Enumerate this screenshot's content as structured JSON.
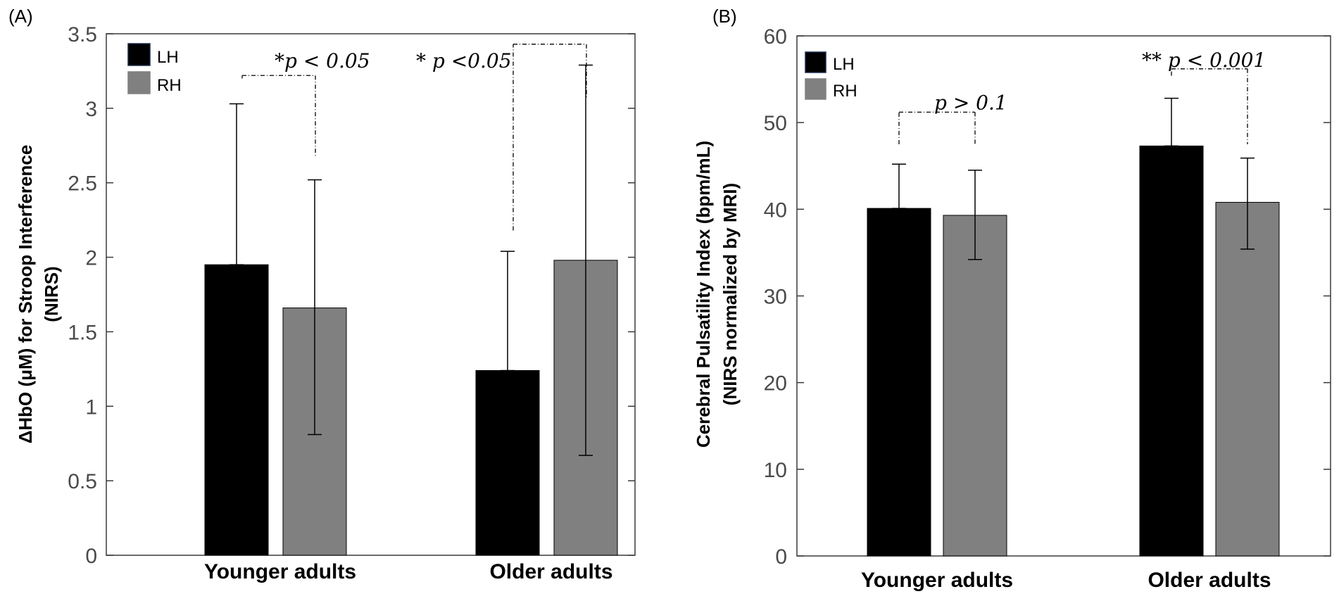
{
  "colors": {
    "LH": "#000000",
    "RH": "#808080",
    "axis": "#3a3a3a",
    "tick_text": "#4a4a4a"
  },
  "chart_data": [
    {
      "type": "bar",
      "panel_label": "(A)",
      "categories": [
        "Younger adults",
        "Older adults"
      ],
      "series": [
        {
          "name": "LH",
          "values": [
            1.95,
            1.24
          ],
          "error_low": [
            1.95,
            1.24
          ],
          "error_high": [
            3.03,
            2.04
          ]
        },
        {
          "name": "RH",
          "values": [
            1.66,
            1.98
          ],
          "error_low": [
            0.81,
            0.67
          ],
          "error_high": [
            2.52,
            3.29
          ]
        }
      ],
      "ylabel_line1": "ΔHbO (μM) for Stroop Interference",
      "ylabel_line2": "(NIRS)",
      "ylim": [
        0,
        3.5
      ],
      "yticks": [
        0,
        0.5,
        1,
        1.5,
        2,
        2.5,
        3,
        3.5
      ],
      "ytick_labels": [
        "0",
        "0.5",
        "1",
        "1.5",
        "2",
        "2.5",
        "3",
        "3.5"
      ],
      "legend": {
        "placement": "top-left",
        "entries": [
          "LH",
          "RH"
        ]
      },
      "annotations": [
        {
          "text": "*p < 0.05",
          "category": 0,
          "left_y": 3.2,
          "right_y": 2.67,
          "bracket_y": 3.22,
          "label_y": 3.33
        },
        {
          "text": "* p <0.05",
          "category": 1,
          "left_y": 2.18,
          "right_y": 3.07,
          "bracket_y": 3.43,
          "label_y": 3.33
        }
      ]
    },
    {
      "type": "bar",
      "panel_label": "(B)",
      "categories": [
        "Younger adults",
        "Older adults"
      ],
      "series": [
        {
          "name": "LH",
          "values": [
            40.1,
            47.3
          ],
          "error_low": [
            40.1,
            47.3
          ],
          "error_high": [
            45.2,
            52.8
          ]
        },
        {
          "name": "RH",
          "values": [
            39.3,
            40.8
          ],
          "error_low": [
            34.2,
            35.4
          ],
          "error_high": [
            44.5,
            45.9
          ]
        }
      ],
      "ylabel_line1": "Cerebral Pulsatility Index (bpm/mL)",
      "ylabel_line2": "(NIRS normalized by MRI)",
      "ylim": [
        0,
        60
      ],
      "yticks": [
        0,
        10,
        20,
        30,
        40,
        50,
        60
      ],
      "ytick_labels": [
        "0",
        "10",
        "20",
        "30",
        "40",
        "50",
        "60"
      ],
      "legend": {
        "placement": "top-left",
        "entries": [
          "LH",
          "RH"
        ]
      },
      "annotations": [
        {
          "text": "p > 0.1",
          "category": 0,
          "left_y": 47.5,
          "right_y": 47.5,
          "bracket_y": 51.2,
          "label_y": 52.5
        },
        {
          "text": "** p < 0.001",
          "category": 1,
          "left_y": 55.4,
          "right_y": 47.5,
          "bracket_y": 56.2,
          "label_y": 57.4
        }
      ]
    }
  ]
}
